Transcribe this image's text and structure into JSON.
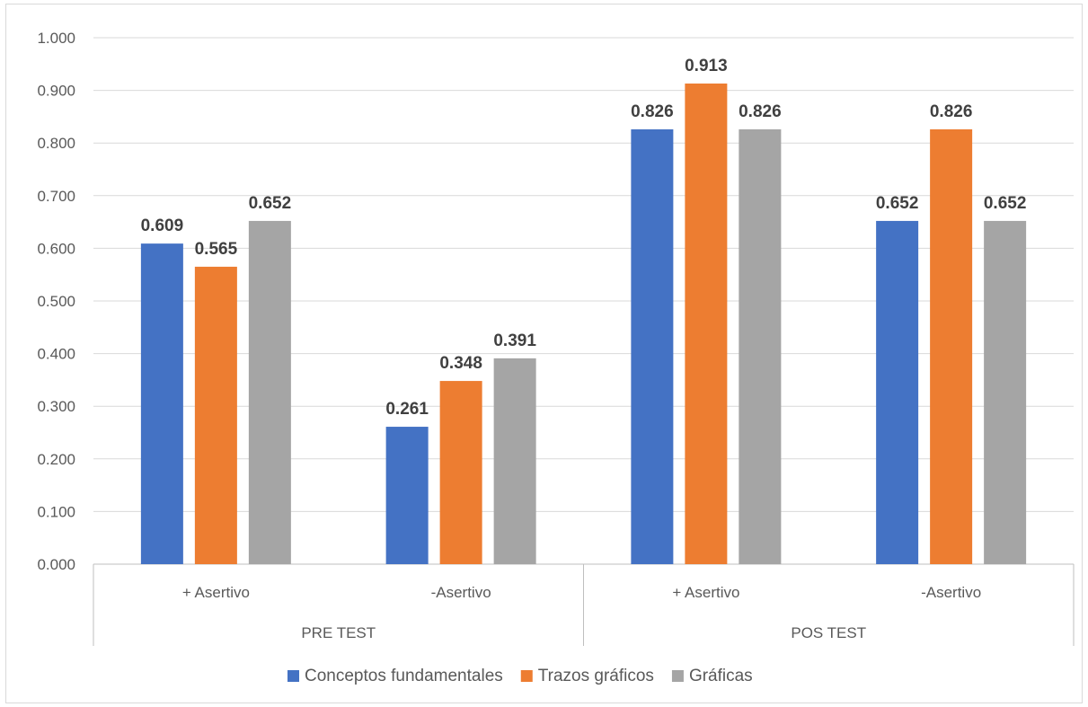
{
  "chart_data": {
    "type": "bar",
    "title": "",
    "xlabel": "",
    "ylabel": "",
    "ylim": [
      0,
      1
    ],
    "yticks": [
      "0.000",
      "0.100",
      "0.200",
      "0.300",
      "0.400",
      "0.500",
      "0.600",
      "0.700",
      "0.800",
      "0.900",
      "1.000"
    ],
    "grid": true,
    "legend_position": "bottom",
    "groups": [
      {
        "label": "PRE TEST",
        "categories": [
          "+ Asertivo",
          "-Asertivo"
        ]
      },
      {
        "label": "POS TEST",
        "categories": [
          "+ Asertivo",
          "-Asertivo"
        ]
      }
    ],
    "series": [
      {
        "name": "Conceptos fundamentales",
        "color": "#4472c4",
        "values": [
          0.609,
          0.261,
          0.826,
          0.652
        ],
        "labels": [
          "0.609",
          "0.261",
          "0.826",
          "0.652"
        ]
      },
      {
        "name": "Trazos gráficos",
        "color": "#ed7d31",
        "values": [
          0.565,
          0.348,
          0.913,
          0.826
        ],
        "labels": [
          "0.565",
          "0.348",
          "0.913",
          "0.826"
        ]
      },
      {
        "name": "Gráficas",
        "color": "#a5a5a5",
        "values": [
          0.652,
          0.391,
          0.826,
          0.652
        ],
        "labels": [
          "0.652",
          "0.391",
          "0.826",
          "0.652"
        ]
      }
    ]
  }
}
